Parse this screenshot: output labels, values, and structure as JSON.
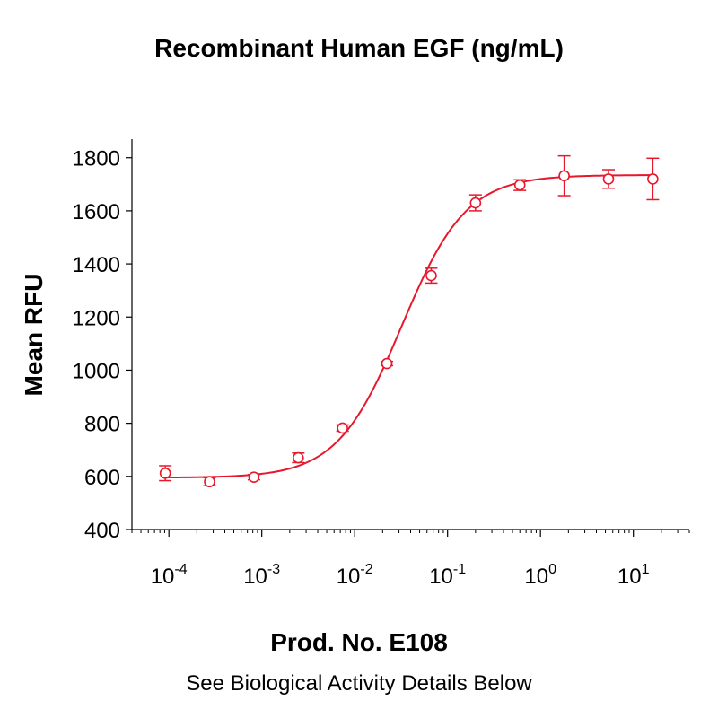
{
  "header": {
    "title": "Recombinant Human EGF (ng/mL)"
  },
  "footer": {
    "product": "Prod. No. E108",
    "note": "See Biological Activity Details Below"
  },
  "chart_data": {
    "type": "scatter",
    "title": "Recombinant Human EGF (ng/mL)",
    "xlabel": "",
    "ylabel": "Mean RFU",
    "xscale": "log",
    "xlim": [
      4e-05,
      40
    ],
    "ylim": [
      400,
      1870
    ],
    "yticks": [
      400,
      600,
      800,
      1000,
      1200,
      1400,
      1600,
      1800
    ],
    "xticks": [
      {
        "value": 0.0001,
        "base": "10",
        "exp": "-4"
      },
      {
        "value": 0.001,
        "base": "10",
        "exp": "-3"
      },
      {
        "value": 0.01,
        "base": "10",
        "exp": "-2"
      },
      {
        "value": 0.1,
        "base": "10",
        "exp": "-1"
      },
      {
        "value": 1,
        "base": "10",
        "exp": "0"
      },
      {
        "value": 10,
        "base": "10",
        "exp": "1"
      }
    ],
    "grid": false,
    "color": "#e8182c",
    "series": [
      {
        "x": [
          9.14e-05,
          0.000274,
          0.000823,
          0.00247,
          0.0074,
          0.0222,
          0.0667,
          0.2,
          0.6,
          1.8,
          5.4,
          16.2
        ],
        "y": [
          612,
          580,
          597,
          670,
          782,
          1025,
          1356,
          1630,
          1697,
          1732,
          1720,
          1720
        ],
        "err": [
          28,
          15,
          10,
          18,
          12,
          8,
          28,
          30,
          20,
          75,
          35,
          78
        ]
      }
    ],
    "fit_curve": {
      "bottom": 595,
      "top": 1735,
      "ec50": 0.032,
      "hill": 1.25
    }
  }
}
